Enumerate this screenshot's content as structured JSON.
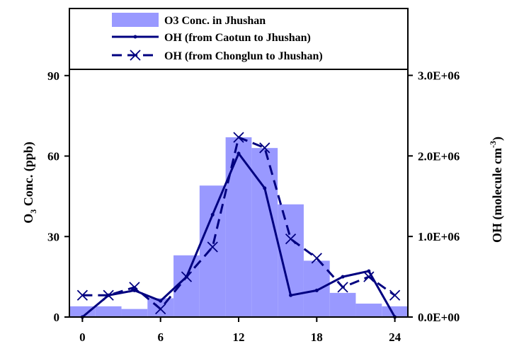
{
  "chart_data": {
    "type": "bar",
    "ylabel_left": "O3 Conc. (ppb)",
    "ylabel_right": "OH (molecule cm-3)",
    "xlim": [
      -1,
      25
    ],
    "ylim_left": [
      0,
      115
    ],
    "ylim_right": [
      0,
      3830000
    ],
    "x_ticks": [
      "0",
      "6",
      "12",
      "18",
      "24"
    ],
    "y_ticks_left": [
      "0",
      "30",
      "60",
      "90"
    ],
    "y_ticks_right": [
      "0.0E+00",
      "1.0E+06",
      "2.0E+06",
      "3.0E+06"
    ],
    "grid": false,
    "legend_position": "top-center, above the 90 line",
    "colors": {
      "bars": "#9999ff",
      "lines": "#000080"
    },
    "series": [
      {
        "name": "O3 Conc. in Jhushan",
        "kind": "bar",
        "axis": "left",
        "x": [
          0,
          2,
          4,
          6,
          8,
          10,
          12,
          14,
          16,
          18,
          20,
          22,
          24
        ],
        "values": [
          4,
          4,
          3,
          7,
          23,
          49,
          67,
          63,
          42,
          21,
          9,
          5,
          4
        ]
      },
      {
        "name": "OH (from Caotun to Jhushan)",
        "kind": "line",
        "axis": "right",
        "marker": "dot",
        "dash": "solid",
        "x": [
          0,
          2,
          4,
          6,
          8,
          10,
          12,
          14,
          16,
          18,
          20,
          22,
          24
        ],
        "values": [
          0,
          270000,
          330000,
          200000,
          500000,
          1270000,
          2030000,
          1600000,
          270000,
          330000,
          500000,
          570000,
          0
        ]
      },
      {
        "name": "OH (from Chonglun to Jhushan)",
        "kind": "line",
        "axis": "right",
        "marker": "x",
        "dash": "dashed",
        "x": [
          0,
          2,
          4,
          6,
          8,
          10,
          12,
          14,
          16,
          18,
          20,
          22,
          24
        ],
        "values": [
          270000,
          270000,
          370000,
          100000,
          500000,
          870000,
          2230000,
          2100000,
          970000,
          730000,
          370000,
          500000,
          270000
        ]
      }
    ]
  }
}
